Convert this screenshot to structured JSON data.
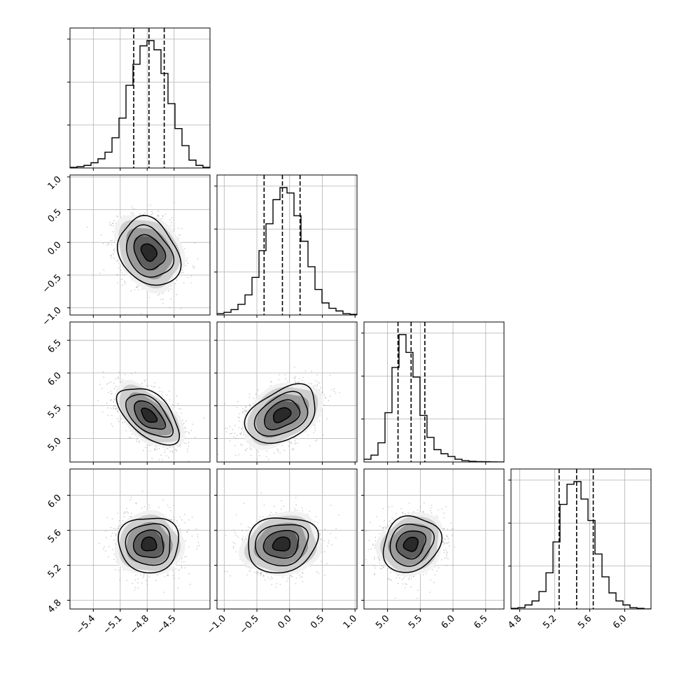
{
  "chart_data": {
    "type": "corner",
    "dimensions": 4,
    "axes": [
      {
        "range": [
          -5.66,
          -4.1
        ],
        "ticks": [
          -5.4,
          -5.1,
          -4.8,
          -4.5
        ],
        "tick_labels": [
          "−5.4",
          "−5.1",
          "−4.8",
          "−4.5"
        ]
      },
      {
        "range": [
          -1.11,
          1.03
        ],
        "ticks": [
          -1.0,
          -0.5,
          0.0,
          0.5,
          1.0
        ],
        "tick_labels": [
          "−1.0",
          "−0.5",
          "0.0",
          "0.5",
          "1.0"
        ]
      },
      {
        "range": [
          4.64,
          6.78
        ],
        "ticks": [
          5.0,
          5.5,
          6.0,
          6.5
        ],
        "tick_labels": [
          "5.0",
          "5.5",
          "6.0",
          "6.5"
        ]
      },
      {
        "range": [
          4.7,
          6.3
        ],
        "ticks": [
          4.8,
          5.2,
          5.6,
          6.0
        ],
        "tick_labels": [
          "4.8",
          "5.2",
          "5.6",
          "6.0"
        ]
      }
    ],
    "quantiles": [
      [
        -4.95,
        -4.78,
        -4.61
      ],
      [
        -0.39,
        -0.11,
        0.16
      ],
      [
        5.16,
        5.36,
        5.57
      ],
      [
        5.25,
        5.45,
        5.64
      ]
    ],
    "histograms": [
      {
        "edges_range": [
          -5.66,
          -4.1
        ],
        "bins": 20,
        "counts": [
          0.005,
          0.01,
          0.02,
          0.04,
          0.07,
          0.12,
          0.23,
          0.38,
          0.63,
          0.79,
          0.93,
          0.97,
          0.9,
          0.72,
          0.49,
          0.3,
          0.17,
          0.06,
          0.02,
          0.005
        ]
      },
      {
        "edges_range": [
          -1.11,
          1.03
        ],
        "bins": 20,
        "counts": [
          0.01,
          0.02,
          0.04,
          0.08,
          0.15,
          0.28,
          0.48,
          0.68,
          0.86,
          0.95,
          0.91,
          0.74,
          0.55,
          0.36,
          0.19,
          0.09,
          0.05,
          0.03,
          0.01,
          0.005
        ]
      },
      {
        "edges_range": [
          4.64,
          6.78
        ],
        "bins": 20,
        "counts": [
          0.02,
          0.05,
          0.14,
          0.36,
          0.69,
          0.93,
          0.8,
          0.62,
          0.34,
          0.18,
          0.09,
          0.06,
          0.04,
          0.02,
          0.01,
          0.005,
          0.003,
          0.002,
          0.001,
          0.0
        ]
      },
      {
        "edges_range": [
          4.7,
          6.3
        ],
        "bins": 20,
        "counts": [
          0.005,
          0.01,
          0.03,
          0.06,
          0.13,
          0.27,
          0.5,
          0.78,
          0.93,
          0.95,
          0.82,
          0.66,
          0.41,
          0.24,
          0.12,
          0.06,
          0.03,
          0.01,
          0.005,
          0.0
        ]
      }
    ],
    "pairs": [
      {
        "x_dim": 0,
        "y_dim": 1,
        "mean": [
          -4.78,
          -0.15
        ],
        "sd": [
          0.17,
          0.26
        ],
        "rho": -0.25
      },
      {
        "x_dim": 0,
        "y_dim": 2,
        "mean": [
          -4.78,
          5.35
        ],
        "sd": [
          0.17,
          0.22
        ],
        "rho": -0.55
      },
      {
        "x_dim": 1,
        "y_dim": 2,
        "mean": [
          -0.12,
          5.36
        ],
        "sd": [
          0.27,
          0.22
        ],
        "rho": 0.38
      },
      {
        "x_dim": 0,
        "y_dim": 3,
        "mean": [
          -4.78,
          5.44
        ],
        "sd": [
          0.17,
          0.16
        ],
        "rho": 0.0
      },
      {
        "x_dim": 1,
        "y_dim": 3,
        "mean": [
          -0.12,
          5.44
        ],
        "sd": [
          0.27,
          0.16
        ],
        "rho": 0.12
      },
      {
        "x_dim": 2,
        "y_dim": 3,
        "mean": [
          5.36,
          5.44
        ],
        "sd": [
          0.22,
          0.16
        ],
        "rho": 0.15
      }
    ],
    "grid": true,
    "contour_levels_sigma": [
      0.5,
      1.0,
      1.5,
      2.0
    ],
    "colors": {
      "line": "#000000",
      "grid": "#b0b0b0",
      "points": "#9a9a9a"
    }
  }
}
